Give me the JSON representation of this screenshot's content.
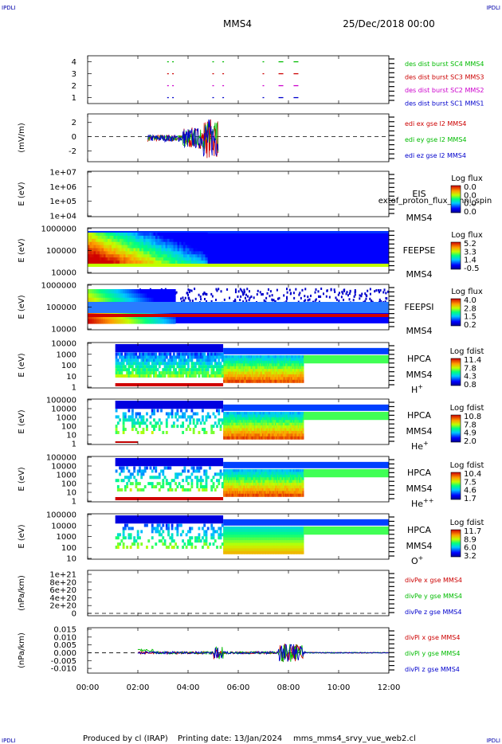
{
  "header": {
    "corner_tl": "IPDLI",
    "corner_tr": "IPDLI",
    "corner_bl": "IPDLI",
    "corner_br": "IPDLI",
    "spacecraft": "MMS4",
    "date": "25/Dec/2018 00:00"
  },
  "footer": {
    "produced": "Produced by cl (IRAP)",
    "printing": "Printing date: 13/Jan/2024",
    "file": "mms_mms4_srvy_vue_web2.cl"
  },
  "x_axis": {
    "ticks": [
      "00:00",
      "02:00",
      "04:00",
      "06:00",
      "08:00",
      "10:00",
      "12:00"
    ],
    "range_hours": [
      0,
      12
    ]
  },
  "chart_data": [
    {
      "id": "burst",
      "type": "scatter",
      "ylabel": "",
      "yticks": [
        "4",
        "3",
        "2",
        "1"
      ],
      "ylim": [
        0.5,
        4.5
      ],
      "series": [
        {
          "name": "des dist burst SC1 MMS1",
          "color": "#0000cc",
          "y": 1,
          "x_hours": [
            3.2,
            3.4,
            5.0,
            5.4,
            7.0,
            7.7,
            8.3
          ]
        },
        {
          "name": "des dist burst SC2 MMS2",
          "color": "#cc00cc",
          "y": 2,
          "x_hours": [
            3.2,
            3.4,
            5.0,
            5.4,
            7.0,
            7.7,
            8.3
          ]
        },
        {
          "name": "des dist burst SC3 MMS3",
          "color": "#cc0000",
          "y": 3,
          "x_hours": [
            3.2,
            3.4,
            5.0,
            5.4,
            7.0,
            7.7,
            8.3
          ]
        },
        {
          "name": "des dist burst SC4 MMS4",
          "color": "#00bb00",
          "y": 4,
          "x_hours": [
            3.2,
            3.4,
            5.0,
            5.4,
            7.0,
            7.7,
            8.3
          ]
        }
      ]
    },
    {
      "id": "edi",
      "type": "line",
      "ylabel": "(mV/m)",
      "yticks": [
        "2",
        "0",
        "-2"
      ],
      "ylim": [
        -3.5,
        3.2
      ],
      "active_range_hours": [
        2.4,
        5.2
      ],
      "series": [
        {
          "name": "edi ex gse l2 MMS4",
          "color": "#cc0000"
        },
        {
          "name": "edi ey gse l2 MMS4",
          "color": "#00bb00"
        },
        {
          "name": "edi ez gse l2 MMS4",
          "color": "#0000cc"
        }
      ]
    },
    {
      "id": "eis",
      "type": "heatmap",
      "ylabel": "E (eV)",
      "yticks": [
        "1e+07",
        "1e+06",
        "1e+05",
        "1e+04"
      ],
      "instrument": "EIS",
      "spacecraft": "MMS4",
      "overlay_text": "extof_proton_flux_omni_spin",
      "cbar_title": "Log flux",
      "cbar_ticks": [
        "0.0",
        "0.0",
        "0.0",
        "0.0"
      ]
    },
    {
      "id": "feepse",
      "type": "heatmap",
      "ylabel": "E (eV)",
      "yticks": [
        "1000000",
        "100000",
        "10000"
      ],
      "instrument": "FEEPSE",
      "spacecraft": "MMS4",
      "cbar_title": "Log flux",
      "cbar_ticks": [
        "5.2",
        "3.3",
        "1.4",
        "-0.5"
      ]
    },
    {
      "id": "feepsi",
      "type": "heatmap",
      "ylabel": "E (eV)",
      "yticks": [
        "1000000",
        "100000",
        "10000"
      ],
      "instrument": "FEEPSI",
      "spacecraft": "MMS4",
      "cbar_title": "Log flux",
      "cbar_ticks": [
        "4.0",
        "2.8",
        "1.5",
        "0.2"
      ]
    },
    {
      "id": "hpca_h",
      "type": "heatmap",
      "ylabel": "E (eV)",
      "yticks": [
        "10000",
        "1000",
        "100",
        "10",
        "1"
      ],
      "instrument": "HPCA",
      "spacecraft": "MMS4",
      "species": "H",
      "charge": "+",
      "cbar_title": "Log fdist",
      "cbar_ticks": [
        "11.4",
        "7.8",
        "4.3",
        "0.8"
      ]
    },
    {
      "id": "hpca_he",
      "type": "heatmap",
      "ylabel": "E (eV)",
      "yticks": [
        "100000",
        "10000",
        "1000",
        "100",
        "10",
        "1"
      ],
      "instrument": "HPCA",
      "spacecraft": "MMS4",
      "species": "He",
      "charge": "+",
      "cbar_title": "Log fdist",
      "cbar_ticks": [
        "10.8",
        "7.8",
        "4.9",
        "2.0"
      ]
    },
    {
      "id": "hpca_hepp",
      "type": "heatmap",
      "ylabel": "E (eV)",
      "yticks": [
        "100000",
        "10000",
        "1000",
        "100",
        "10",
        "1"
      ],
      "instrument": "HPCA",
      "spacecraft": "MMS4",
      "species": "He",
      "charge": "++",
      "cbar_title": "Log fdist",
      "cbar_ticks": [
        "10.4",
        "7.5",
        "4.6",
        "1.7"
      ]
    },
    {
      "id": "hpca_o",
      "type": "heatmap",
      "ylabel": "E (eV)",
      "yticks": [
        "100000",
        "10000",
        "1000",
        "100",
        "10"
      ],
      "instrument": "HPCA",
      "spacecraft": "MMS4",
      "species": "O",
      "charge": "+",
      "cbar_title": "Log fdist",
      "cbar_ticks": [
        "11.7",
        "8.9",
        "6.0",
        "3.2"
      ]
    },
    {
      "id": "divpe",
      "type": "line",
      "ylabel": "(nPa/km)",
      "yticks": [
        "1e+21",
        "8e+20",
        "6e+20",
        "4e+20",
        "2e+20",
        "0"
      ],
      "series": [
        {
          "name": "divPe x gse MMS4",
          "color": "#cc0000"
        },
        {
          "name": "divPe y gse MMS4",
          "color": "#00bb00"
        },
        {
          "name": "divPe z gse MMS4",
          "color": "#0000cc"
        }
      ]
    },
    {
      "id": "divpi",
      "type": "line",
      "ylabel": "(nPa/km)",
      "yticks": [
        "0.015",
        "0.010",
        "0.005",
        "0.000",
        "-0.005",
        "-0.010"
      ],
      "ylim": [
        -0.013,
        0.016
      ],
      "active_range_hours": [
        2.0,
        8.7
      ],
      "series": [
        {
          "name": "divPi x gse MMS4",
          "color": "#cc0000"
        },
        {
          "name": "divPi y gse MMS4",
          "color": "#00bb00"
        },
        {
          "name": "divPi z gse MMS4",
          "color": "#0000cc"
        }
      ]
    }
  ]
}
